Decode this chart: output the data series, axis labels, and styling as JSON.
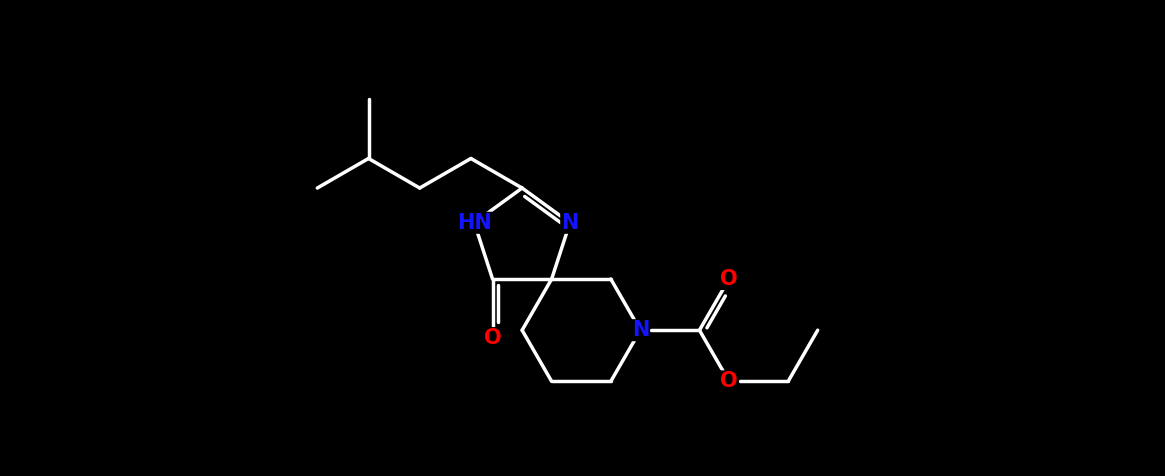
{
  "bg_color": "#000000",
  "bond_color": "#ffffff",
  "n_color": "#1414ff",
  "o_color": "#ff0000",
  "linewidth": 2.5,
  "figsize": [
    11.65,
    4.76
  ],
  "dpi": 100,
  "font_size": 15,
  "xlim": [
    -5.5,
    6.5
  ],
  "ylim": [
    -3.0,
    3.2
  ]
}
